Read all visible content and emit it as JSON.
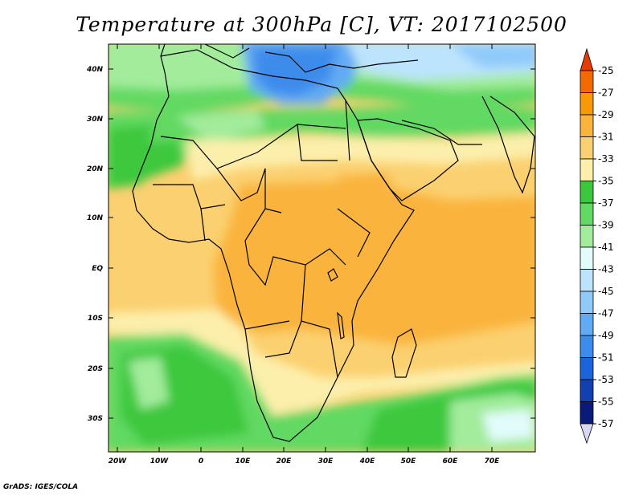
{
  "title": "Temperature at 300hPa [C], VT: 2017102500",
  "footer": "GrADS: IGES/COLA",
  "map": {
    "lat_labels": [
      "40N",
      "30N",
      "20N",
      "10N",
      "EQ",
      "10S",
      "20S",
      "30S"
    ],
    "lon_labels": [
      "20W",
      "10W",
      "0",
      "10E",
      "20E",
      "30E",
      "40E",
      "50E",
      "60E",
      "70E"
    ]
  },
  "colorbar": {
    "levels": [
      "-25",
      "-27",
      "-29",
      "-31",
      "-33",
      "-35",
      "-37",
      "-39",
      "-41",
      "-43",
      "-45",
      "-47",
      "-49",
      "-51",
      "-53",
      "-55",
      "-57"
    ],
    "colors": [
      "#e63c00",
      "#f26a00",
      "#f79a05",
      "#fab43c",
      "#fbd070",
      "#fcefac",
      "#3cc83c",
      "#62d962",
      "#a2ec9c",
      "#e2fcfc",
      "#bce4fc",
      "#90cafa",
      "#62aaf4",
      "#3c8cec",
      "#1c64dc",
      "#1240b0",
      "#0a1a78"
    ],
    "top_arrow_color": "#e63c00",
    "bottom_arrow_color": "#d8d8f4"
  }
}
